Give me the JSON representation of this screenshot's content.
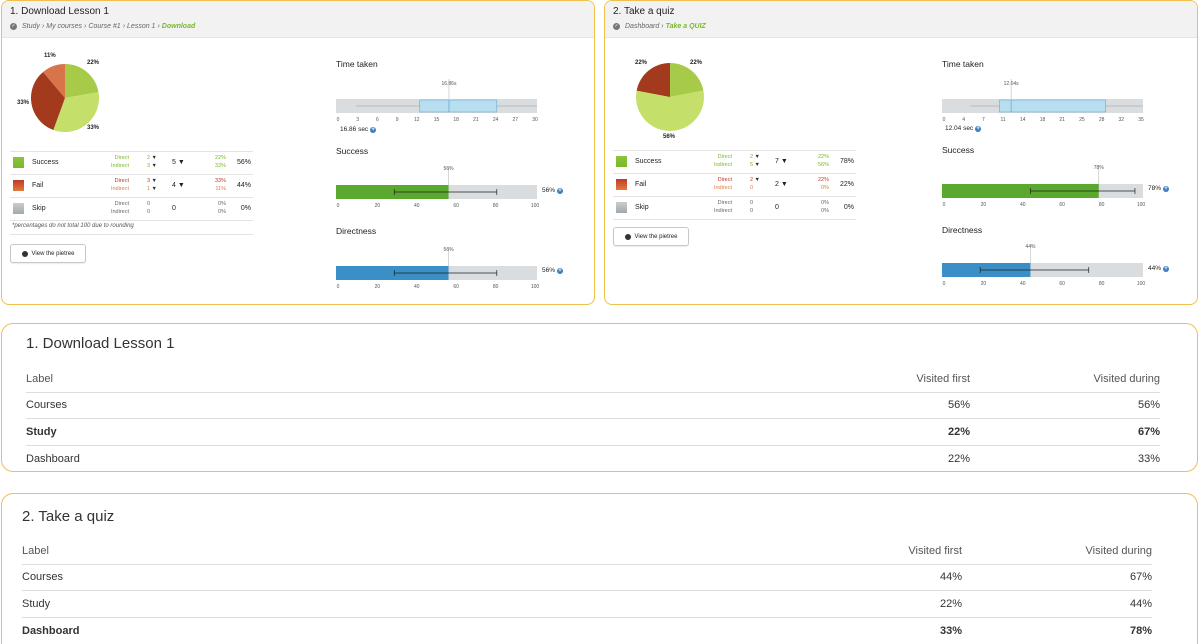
{
  "colors": {
    "success": "#7ab929",
    "success_light": "#c5e06a",
    "fail": "#c0392b",
    "fail_dark": "#a33a1e",
    "skip": "#b0b6ba",
    "accent": "#f0c14a",
    "bar_green": "#5aa82e",
    "bar_blue": "#3a8fc6",
    "box_blue": "#b8dff0",
    "track": "#d9dddf",
    "link_blue": "#3a7dc0"
  },
  "tasks": [
    {
      "title": "1. Download Lesson 1",
      "breadcrumb": [
        "Study",
        "My courses",
        "Course #1",
        "Lesson 1"
      ],
      "breadcrumb_current": "Download",
      "pie": {
        "slices": [
          {
            "label": "22%",
            "value": 22,
            "color": "#a7cb48"
          },
          {
            "label": "33%",
            "value": 33,
            "color": "#c5e06a"
          },
          {
            "label": "33%",
            "value": 33,
            "color": "#a33a1e"
          },
          {
            "label": "11%",
            "value": 11,
            "color": "#d9744a"
          }
        ]
      },
      "rows": [
        {
          "name": "Success",
          "direct_label": "Direct",
          "indirect_label": "Indirect",
          "direct": "2",
          "indirect": "3",
          "total": "5",
          "direct_pct": "22%",
          "indirect_pct": "33%",
          "overall": "56%",
          "kind": "success"
        },
        {
          "name": "Fail",
          "direct_label": "Direct",
          "indirect_label": "Indirect",
          "direct": "3",
          "indirect": "1",
          "total": "4",
          "direct_pct": "33%",
          "indirect_pct": "11%",
          "overall": "44%",
          "kind": "fail"
        },
        {
          "name": "Skip",
          "direct_label": "Direct",
          "indirect_label": "Indirect",
          "direct": "0",
          "indirect": "0",
          "total": "0",
          "direct_pct": "0%",
          "indirect_pct": "0%",
          "overall": "0%",
          "kind": "skip"
        }
      ],
      "note": "*percentages do not total 100 due to rounding",
      "button": "View the pietree",
      "time": {
        "title": "Time taken",
        "median_label": "16.86s",
        "readout": "16.86 sec",
        "ticks": [
          "0",
          "3",
          "6",
          "9",
          "12",
          "15",
          "18",
          "21",
          "24",
          "27",
          "30"
        ],
        "min": 3,
        "q1": 12.5,
        "median": 16.86,
        "q3": 24,
        "max": 30,
        "axis_max": 30
      },
      "success": {
        "title": "Success",
        "value": 56,
        "value_label": "56%",
        "err_low": 29,
        "err_high": 80,
        "ticks": [
          "0",
          "20",
          "40",
          "60",
          "80",
          "100"
        ]
      },
      "directness": {
        "title": "Directness",
        "value": 56,
        "value_label": "56%",
        "err_low": 29,
        "err_high": 80,
        "ticks": [
          "0",
          "20",
          "40",
          "60",
          "80",
          "100"
        ]
      }
    },
    {
      "title": "2. Take a quiz",
      "breadcrumb": [
        "Dashboard"
      ],
      "breadcrumb_current": "Take a QUIZ",
      "pie": {
        "slices": [
          {
            "label": "22%",
            "value": 22,
            "color": "#a7cb48"
          },
          {
            "label": "56%",
            "value": 56,
            "color": "#c5e06a"
          },
          {
            "label": "22%",
            "value": 22,
            "color": "#a33a1e"
          }
        ]
      },
      "rows": [
        {
          "name": "Success",
          "direct_label": "Direct",
          "indirect_label": "Indirect",
          "direct": "2",
          "indirect": "5",
          "total": "7",
          "direct_pct": "22%",
          "indirect_pct": "56%",
          "overall": "78%",
          "kind": "success"
        },
        {
          "name": "Fail",
          "direct_label": "Direct",
          "indirect_label": "Indirect",
          "direct": "2",
          "indirect": "0",
          "total": "2",
          "direct_pct": "22%",
          "indirect_pct": "0%",
          "overall": "22%",
          "kind": "fail"
        },
        {
          "name": "Skip",
          "direct_label": "Direct",
          "indirect_label": "Indirect",
          "direct": "0",
          "indirect": "0",
          "total": "0",
          "direct_pct": "0%",
          "indirect_pct": "0%",
          "overall": "0%",
          "kind": "skip"
        }
      ],
      "note": "",
      "button": "View the pietree",
      "time": {
        "title": "Time taken",
        "median_label": "12.04s",
        "readout": "12.04 sec",
        "ticks": [
          "0",
          "4",
          "7",
          "11",
          "14",
          "18",
          "21",
          "25",
          "28",
          "32",
          "35"
        ],
        "min": 5,
        "q1": 10,
        "median": 12.04,
        "q3": 28.5,
        "max": 35,
        "axis_max": 35
      },
      "success": {
        "title": "Success",
        "value": 78,
        "value_label": "78%",
        "err_low": 44,
        "err_high": 96,
        "ticks": [
          "0",
          "20",
          "40",
          "60",
          "80",
          "100"
        ]
      },
      "directness": {
        "title": "Directness",
        "value": 44,
        "value_label": "44%",
        "err_low": 19,
        "err_high": 73,
        "ticks": [
          "0",
          "20",
          "40",
          "60",
          "80",
          "100"
        ]
      }
    }
  ],
  "tables": [
    {
      "title": "1. Download Lesson 1",
      "headers": [
        "Label",
        "Visited first",
        "Visited during"
      ],
      "rows": [
        {
          "label": "Courses",
          "first": "56%",
          "during": "56%",
          "bold": false
        },
        {
          "label": "Study",
          "first": "22%",
          "during": "67%",
          "bold": true
        },
        {
          "label": "Dashboard",
          "first": "22%",
          "during": "33%",
          "bold": false
        }
      ]
    },
    {
      "title": "2. Take a quiz",
      "headers": [
        "Label",
        "Visited first",
        "Visited during"
      ],
      "rows": [
        {
          "label": "Courses",
          "first": "44%",
          "during": "67%",
          "bold": false
        },
        {
          "label": "Study",
          "first": "22%",
          "during": "44%",
          "bold": false
        },
        {
          "label": "Dashboard",
          "first": "33%",
          "during": "78%",
          "bold": true
        }
      ]
    }
  ]
}
